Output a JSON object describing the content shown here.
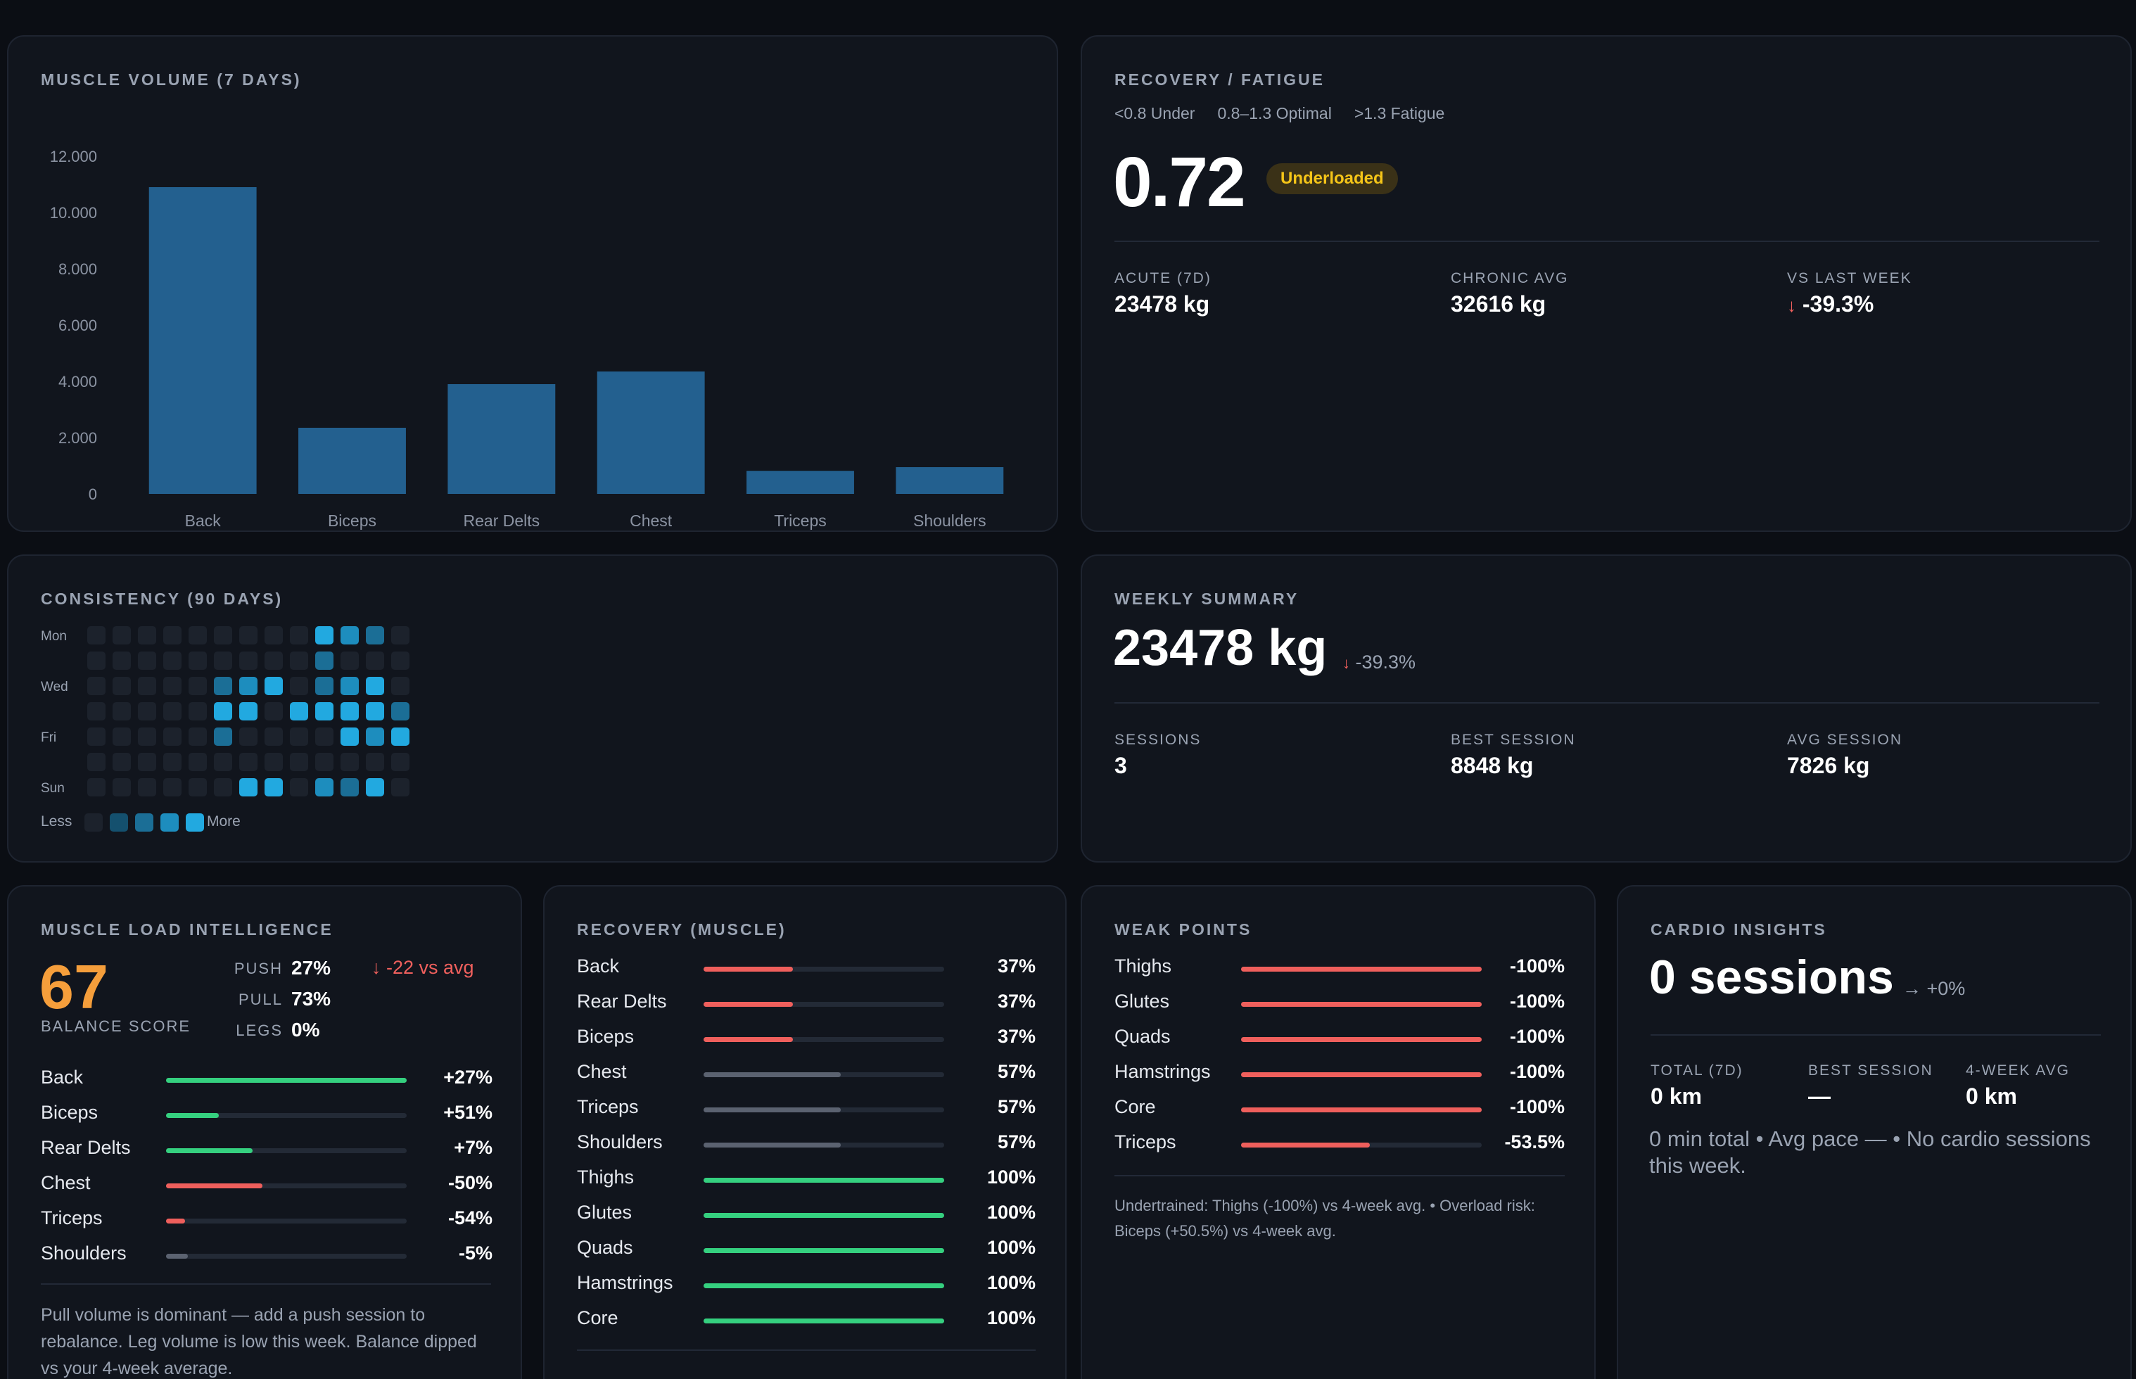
{
  "colors": {
    "bar_blue": "#23608f",
    "green": "#35d07f",
    "red": "#ef5f5c",
    "grey": "#5b6270",
    "orange": "#f59e3b",
    "heat_empty": "#1c222c",
    "heat_l1": "#14506e",
    "heat_l2": "#1b6e96",
    "heat_l3": "#1d8dbe",
    "heat_l4": "#22a9e0"
  },
  "muscle_volume": {
    "title": "MUSCLE VOLUME (7 DAYS)"
  },
  "chart_data": {
    "type": "bar",
    "title": "MUSCLE VOLUME (7 DAYS)",
    "categories": [
      "Back",
      "Biceps",
      "Rear Delts",
      "Chest",
      "Triceps",
      "Shoulders"
    ],
    "values": [
      10900,
      2350,
      3900,
      4350,
      820,
      950
    ],
    "yticks": [
      "0",
      "2.000",
      "4.000",
      "6.000",
      "8.000",
      "10.000",
      "12.000"
    ],
    "ylim": [
      0,
      12000
    ],
    "xlabel": "",
    "ylabel": "",
    "grid": false
  },
  "recovery_fatigue": {
    "title": "RECOVERY / FATIGUE",
    "legend": [
      "<0.8 Under",
      "0.8–1.3 Optimal",
      ">1.3 Fatigue"
    ],
    "ratio": "0.72",
    "badge": "Underloaded",
    "acute_label": "ACUTE (7D)",
    "acute_value": "23478 kg",
    "chronic_label": "CHRONIC AVG",
    "chronic_value": "32616 kg",
    "vs_label": "VS LAST WEEK",
    "vs_arrow": "↓",
    "vs_value": "-39.3%"
  },
  "consistency": {
    "title": "CONSISTENCY (90 DAYS)",
    "day_labels": [
      "Mon",
      "Wed",
      "Fri",
      "Sun"
    ],
    "legend_less": "Less",
    "legend_more": "More",
    "grid": [
      [
        0,
        0,
        0,
        0,
        0,
        0,
        0,
        0,
        0,
        4,
        3,
        2,
        0
      ],
      [
        0,
        0,
        0,
        0,
        0,
        0,
        0,
        0,
        0,
        2,
        0,
        0,
        0
      ],
      [
        0,
        0,
        0,
        0,
        0,
        2,
        3,
        4,
        0,
        2,
        3,
        4,
        0
      ],
      [
        0,
        0,
        0,
        0,
        0,
        4,
        4,
        0,
        4,
        4,
        4,
        4,
        2
      ],
      [
        0,
        0,
        0,
        0,
        0,
        2,
        0,
        0,
        0,
        0,
        4,
        3,
        4
      ],
      [
        0,
        0,
        0,
        0,
        0,
        0,
        0,
        0,
        0,
        0,
        0,
        0,
        0
      ],
      [
        0,
        0,
        0,
        0,
        0,
        0,
        4,
        4,
        0,
        3,
        2,
        4,
        0
      ]
    ]
  },
  "weekly_summary": {
    "title": "WEEKLY SUMMARY",
    "total": "23478 kg",
    "delta_arrow": "↓",
    "delta": "-39.3%",
    "sessions_label": "SESSIONS",
    "sessions_value": "3",
    "best_label": "BEST SESSION",
    "best_value": "8848 kg",
    "avg_label": "AVG SESSION",
    "avg_value": "7826 kg"
  },
  "muscle_load": {
    "title": "MUSCLE LOAD INTELLIGENCE",
    "score": "67",
    "score_label": "BALANCE SCORE",
    "push_label": "PUSH",
    "push_value": "27%",
    "pull_label": "PULL",
    "pull_value": "73%",
    "legs_label": "LEGS",
    "legs_value": "0%",
    "vs_avg": "↓ -22 vs avg",
    "rows": [
      {
        "name": "Back",
        "value": "+27%",
        "fill": 1.0,
        "color": "green"
      },
      {
        "name": "Biceps",
        "value": "+51%",
        "fill": 0.22,
        "color": "green"
      },
      {
        "name": "Rear Delts",
        "value": "+7%",
        "fill": 0.36,
        "color": "green"
      },
      {
        "name": "Chest",
        "value": "-50%",
        "fill": 0.4,
        "color": "red"
      },
      {
        "name": "Triceps",
        "value": "-54%",
        "fill": 0.08,
        "color": "red"
      },
      {
        "name": "Shoulders",
        "value": "-5%",
        "fill": 0.09,
        "color": "grey"
      }
    ],
    "note": "Pull volume is dominant — add a push session to rebalance. Leg volume is low this week. Balance dipped vs your 4-week average."
  },
  "recovery_muscle": {
    "title": "RECOVERY (MUSCLE)",
    "rows": [
      {
        "name": "Back",
        "value": "37%",
        "fill": 0.37,
        "color": "red"
      },
      {
        "name": "Rear Delts",
        "value": "37%",
        "fill": 0.37,
        "color": "red"
      },
      {
        "name": "Biceps",
        "value": "37%",
        "fill": 0.37,
        "color": "red"
      },
      {
        "name": "Chest",
        "value": "57%",
        "fill": 0.57,
        "color": "grey"
      },
      {
        "name": "Triceps",
        "value": "57%",
        "fill": 0.57,
        "color": "grey"
      },
      {
        "name": "Shoulders",
        "value": "57%",
        "fill": 0.57,
        "color": "grey"
      },
      {
        "name": "Thighs",
        "value": "100%",
        "fill": 1.0,
        "color": "green"
      },
      {
        "name": "Glutes",
        "value": "100%",
        "fill": 1.0,
        "color": "green"
      },
      {
        "name": "Quads",
        "value": "100%",
        "fill": 1.0,
        "color": "green"
      },
      {
        "name": "Hamstrings",
        "value": "100%",
        "fill": 1.0,
        "color": "green"
      },
      {
        "name": "Core",
        "value": "100%",
        "fill": 1.0,
        "color": "green"
      }
    ]
  },
  "weak_points": {
    "title": "WEAK POINTS",
    "rows": [
      {
        "name": "Thighs",
        "value": "-100%",
        "fill": 1.0,
        "color": "red"
      },
      {
        "name": "Glutes",
        "value": "-100%",
        "fill": 1.0,
        "color": "red"
      },
      {
        "name": "Quads",
        "value": "-100%",
        "fill": 1.0,
        "color": "red"
      },
      {
        "name": "Hamstrings",
        "value": "-100%",
        "fill": 1.0,
        "color": "red"
      },
      {
        "name": "Core",
        "value": "-100%",
        "fill": 1.0,
        "color": "red"
      },
      {
        "name": "Triceps",
        "value": "-53.5%",
        "fill": 0.535,
        "color": "red"
      }
    ],
    "note": "Undertrained: Thighs (-100%) vs 4-week avg. • Overload risk: Biceps (+50.5%) vs 4-week avg."
  },
  "cardio": {
    "title": "CARDIO INSIGHTS",
    "sessions": "0 sessions",
    "delta": "→ +0%",
    "total_label": "TOTAL (7D)",
    "total_value": "0 km",
    "best_label": "BEST SESSION",
    "best_value": "—",
    "avg_label": "4-WEEK AVG",
    "avg_value": "0 km",
    "note": "0 min total • Avg pace — • No cardio sessions this week."
  }
}
